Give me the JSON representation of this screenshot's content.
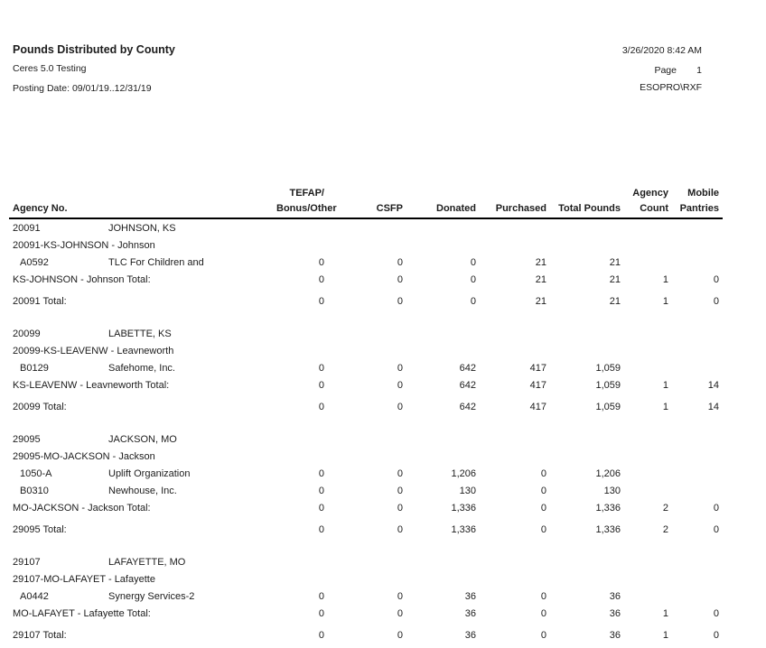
{
  "report": {
    "title": "Pounds Distributed by County",
    "subtitle": "Ceres 5.0 Testing",
    "posting_date": "Posting Date: 09/01/19..12/31/19",
    "datetime": "3/26/2020 8:42 AM",
    "page_label": "Page",
    "page_number": "1",
    "user": "ESOPRO\\RXF"
  },
  "table": {
    "columns": [
      {
        "line1": "",
        "line2": "Agency No."
      },
      {
        "line1": "",
        "line2": ""
      },
      {
        "line1": "TEFAP/",
        "line2": "Bonus/Other"
      },
      {
        "line1": "",
        "line2": "CSFP"
      },
      {
        "line1": "",
        "line2": "Donated"
      },
      {
        "line1": "",
        "line2": "Purchased"
      },
      {
        "line1": "",
        "line2": "Total Pounds"
      },
      {
        "line1": "Agency",
        "line2": "Count"
      },
      {
        "line1": "Mobile",
        "line2": "Pantries"
      }
    ],
    "groups": [
      {
        "county_no": "20091",
        "county_name": "JOHNSON, KS",
        "subgroup": "20091-KS-JOHNSON - Johnson",
        "agencies": [
          {
            "code": "A0592",
            "name": "TLC For Children and",
            "values": [
              "0",
              "0",
              "0",
              "21",
              "21"
            ]
          }
        ],
        "subtotal": {
          "label": "KS-JOHNSON - Johnson Total:",
          "values": [
            "0",
            "0",
            "0",
            "21",
            "21",
            "1",
            "0"
          ]
        },
        "total": {
          "label": "20091 Total:",
          "values": [
            "0",
            "0",
            "0",
            "21",
            "21",
            "1",
            "0"
          ]
        }
      },
      {
        "county_no": "20099",
        "county_name": "LABETTE, KS",
        "subgroup": "20099-KS-LEAVENW - Leavneworth",
        "agencies": [
          {
            "code": "B0129",
            "name": "Safehome, Inc.",
            "values": [
              "0",
              "0",
              "642",
              "417",
              "1,059"
            ]
          }
        ],
        "subtotal": {
          "label": "KS-LEAVENW - Leavneworth Total:",
          "values": [
            "0",
            "0",
            "642",
            "417",
            "1,059",
            "1",
            "14"
          ]
        },
        "total": {
          "label": "20099 Total:",
          "values": [
            "0",
            "0",
            "642",
            "417",
            "1,059",
            "1",
            "14"
          ]
        }
      },
      {
        "county_no": "29095",
        "county_name": "JACKSON, MO",
        "subgroup": "29095-MO-JACKSON - Jackson",
        "agencies": [
          {
            "code": "1050-A",
            "name": "Uplift Organization",
            "values": [
              "0",
              "0",
              "1,206",
              "0",
              "1,206"
            ]
          },
          {
            "code": "B0310",
            "name": "Newhouse, Inc.",
            "values": [
              "0",
              "0",
              "130",
              "0",
              "130"
            ]
          }
        ],
        "subtotal": {
          "label": "MO-JACKSON - Jackson Total:",
          "values": [
            "0",
            "0",
            "1,336",
            "0",
            "1,336",
            "2",
            "0"
          ]
        },
        "total": {
          "label": "29095 Total:",
          "values": [
            "0",
            "0",
            "1,336",
            "0",
            "1,336",
            "2",
            "0"
          ]
        }
      },
      {
        "county_no": "29107",
        "county_name": "LAFAYETTE, MO",
        "subgroup": "29107-MO-LAFAYET - Lafayette",
        "agencies": [
          {
            "code": "A0442",
            "name": "Synergy Services-2",
            "values": [
              "0",
              "0",
              "36",
              "0",
              "36"
            ]
          }
        ],
        "subtotal": {
          "label": "MO-LAFAYET - Lafayette Total:",
          "values": [
            "0",
            "0",
            "36",
            "0",
            "36",
            "1",
            "0"
          ]
        },
        "total": {
          "label": "29107 Total:",
          "values": [
            "0",
            "0",
            "36",
            "0",
            "36",
            "1",
            "0"
          ]
        }
      }
    ]
  }
}
